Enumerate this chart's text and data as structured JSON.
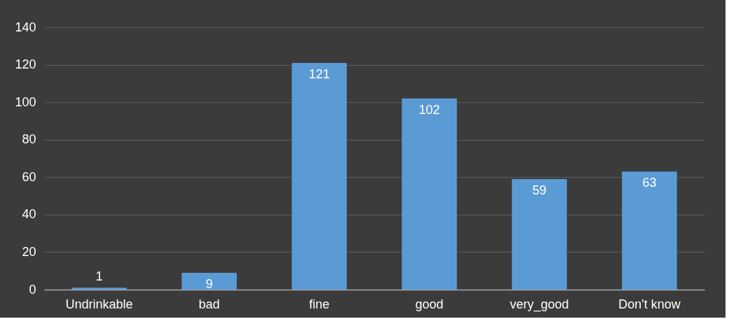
{
  "chart_data": {
    "type": "bar",
    "categories": [
      "Undrinkable",
      "bad",
      "fine",
      "good",
      "very_good",
      "Don't know"
    ],
    "values": [
      1,
      9,
      121,
      102,
      59,
      63
    ],
    "color": "#5b9bd5",
    "ylim": [
      0,
      140
    ],
    "yticks": [
      0,
      20,
      40,
      60,
      80,
      100,
      120,
      140
    ],
    "grid": "y",
    "data_labels": true
  }
}
